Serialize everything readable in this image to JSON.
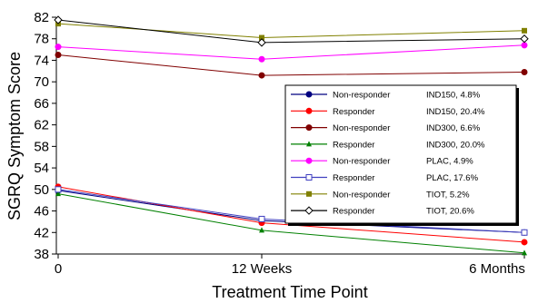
{
  "chart_data": {
    "type": "line",
    "title": "",
    "xlabel": "Treatment Time Point",
    "ylabel": "SGRQ Symptom Score",
    "categories": [
      "0",
      "12 Weeks",
      "6 Months"
    ],
    "ylim": [
      38,
      82
    ],
    "yticks": [
      38,
      42,
      46,
      50,
      54,
      58,
      62,
      66,
      70,
      74,
      78,
      82
    ],
    "grid": false,
    "legend_position": "right",
    "series": [
      {
        "name": "Non-responder",
        "name2": "IND150, 4.8%",
        "color": "#000080",
        "marker": "circle",
        "values": [
          49.8,
          44.2,
          42.0
        ]
      },
      {
        "name": "Responder",
        "name2": "IND150, 20.4%",
        "color": "#ff0000",
        "marker": "circle",
        "values": [
          50.5,
          43.8,
          40.2
        ]
      },
      {
        "name": "Non-responder",
        "name2": "IND300, 6.6%",
        "color": "#800000",
        "marker": "circle",
        "values": [
          75.0,
          71.2,
          71.8
        ]
      },
      {
        "name": "Responder",
        "name2": "IND300, 20.0%",
        "color": "#008000",
        "marker": "triangle",
        "values": [
          49.2,
          42.4,
          38.2
        ]
      },
      {
        "name": "Non-responder",
        "name2": "PLAC, 4.9%",
        "color": "#ff00ff",
        "marker": "circle",
        "values": [
          76.5,
          74.2,
          76.8
        ]
      },
      {
        "name": "Responder",
        "name2": "PLAC, 17.6%",
        "color": "#4040c0",
        "marker": "square-open",
        "values": [
          50.0,
          44.5,
          42.0
        ]
      },
      {
        "name": "Non-responder",
        "name2": "TIOT, 5.2%",
        "color": "#808000",
        "marker": "square",
        "values": [
          80.8,
          78.2,
          79.5
        ]
      },
      {
        "name": "Responder",
        "name2": "TIOT, 20.6%",
        "color": "#000000",
        "marker": "diamond-open",
        "values": [
          81.5,
          77.3,
          78.0
        ]
      }
    ]
  }
}
